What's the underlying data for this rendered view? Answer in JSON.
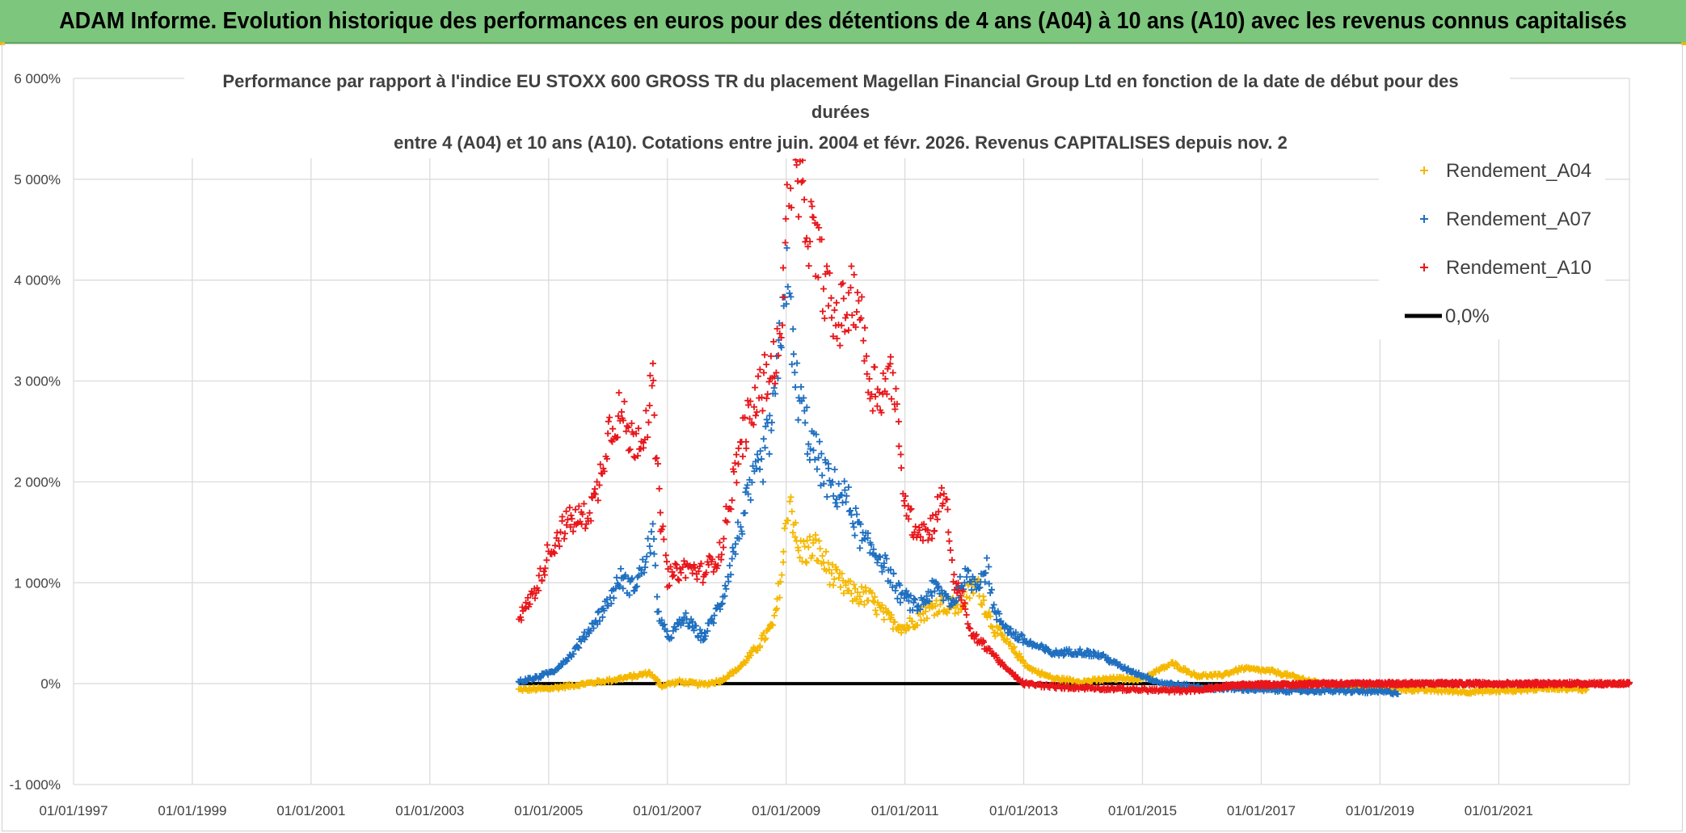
{
  "banner": {
    "title": "ADAM Informe. Evolution historique des performances en euros pour des détentions de 4 ans (A04) à 10 ans (A10) avec les revenus connus capitalisés"
  },
  "chart_data": {
    "type": "scatter",
    "title_lines": [
      "Performance par rapport à l'indice EU STOXX 600 GROSS TR  du placement Magellan Financial Group Ltd en fonction de la date de début pour des",
      "durées",
      "entre 4 (A04) et 10 ans (A10). Cotations entre juin. 2004 et févr. 2026. Revenus CAPITALISES depuis nov. 2"
    ],
    "xlabel": "",
    "ylabel": "",
    "xlim": [
      1997.0,
      2023.2
    ],
    "ylim": [
      -1000,
      6000
    ],
    "x_ticks": [
      1997,
      1999,
      2001,
      2003,
      2005,
      2007,
      2009,
      2011,
      2013,
      2015,
      2017,
      2019,
      2021
    ],
    "x_tick_labels": [
      "01/01/1997",
      "01/01/1999",
      "01/01/2001",
      "01/01/2003",
      "01/01/2005",
      "01/01/2007",
      "01/01/2009",
      "01/01/2011",
      "01/01/2013",
      "01/01/2015",
      "01/01/2017",
      "01/01/2019",
      "01/01/2021"
    ],
    "y_ticks": [
      -1000,
      0,
      1000,
      2000,
      3000,
      4000,
      5000,
      6000
    ],
    "y_tick_labels": [
      "-1 000%",
      "0%",
      "1 000%",
      "2 000%",
      "3 000%",
      "4 000%",
      "5 000%",
      "6 000%"
    ],
    "grid": true,
    "legend_position": "top-right",
    "series": [
      {
        "name": "Rendement_A04",
        "color": "#f5b800",
        "marker": "+",
        "points": [
          [
            2004.5,
            -60
          ],
          [
            2005.0,
            -50
          ],
          [
            2005.5,
            -10
          ],
          [
            2006.0,
            30
          ],
          [
            2006.5,
            80
          ],
          [
            2006.7,
            110
          ],
          [
            2006.9,
            -20
          ],
          [
            2007.2,
            20
          ],
          [
            2007.6,
            -10
          ],
          [
            2007.9,
            30
          ],
          [
            2008.2,
            150
          ],
          [
            2008.5,
            350
          ],
          [
            2008.8,
            600
          ],
          [
            2008.95,
            1200
          ],
          [
            2009.05,
            1900
          ],
          [
            2009.2,
            1300
          ],
          [
            2009.5,
            1350
          ],
          [
            2009.8,
            1050
          ],
          [
            2010.1,
            900
          ],
          [
            2010.4,
            850
          ],
          [
            2010.7,
            650
          ],
          [
            2011.0,
            550
          ],
          [
            2011.3,
            700
          ],
          [
            2011.6,
            800
          ],
          [
            2011.9,
            750
          ],
          [
            2012.2,
            1000
          ],
          [
            2012.5,
            550
          ],
          [
            2012.8,
            350
          ],
          [
            2013.1,
            150
          ],
          [
            2013.5,
            50
          ],
          [
            2014.0,
            20
          ],
          [
            2014.5,
            50
          ],
          [
            2015.0,
            50
          ],
          [
            2015.5,
            200
          ],
          [
            2015.9,
            80
          ],
          [
            2016.3,
            80
          ],
          [
            2016.7,
            150
          ],
          [
            2017.2,
            120
          ],
          [
            2017.6,
            60
          ],
          [
            2018.0,
            0
          ],
          [
            2018.5,
            -30
          ],
          [
            2019.0,
            -40
          ],
          [
            2019.5,
            -60
          ],
          [
            2020.0,
            -70
          ],
          [
            2020.5,
            -80
          ],
          [
            2021.0,
            -70
          ],
          [
            2021.5,
            -60
          ],
          [
            2021.8,
            -40
          ],
          [
            2022.2,
            -50
          ],
          [
            2022.5,
            -60
          ]
        ]
      },
      {
        "name": "Rendement_A07",
        "color": "#1f6fc0",
        "marker": "+",
        "points": [
          [
            2004.5,
            20
          ],
          [
            2004.8,
            60
          ],
          [
            2005.1,
            130
          ],
          [
            2005.4,
            300
          ],
          [
            2005.7,
            550
          ],
          [
            2006.0,
            800
          ],
          [
            2006.2,
            1050
          ],
          [
            2006.4,
            950
          ],
          [
            2006.6,
            1150
          ],
          [
            2006.75,
            1500
          ],
          [
            2006.85,
            700
          ],
          [
            2007.0,
            450
          ],
          [
            2007.3,
            650
          ],
          [
            2007.6,
            450
          ],
          [
            2007.9,
            800
          ],
          [
            2008.2,
            1500
          ],
          [
            2008.4,
            1900
          ],
          [
            2008.6,
            2200
          ],
          [
            2008.8,
            2700
          ],
          [
            2009.0,
            4100
          ],
          [
            2009.15,
            3000
          ],
          [
            2009.4,
            2400
          ],
          [
            2009.7,
            2000
          ],
          [
            2010.0,
            1850
          ],
          [
            2010.3,
            1400
          ],
          [
            2010.6,
            1250
          ],
          [
            2010.9,
            900
          ],
          [
            2011.2,
            750
          ],
          [
            2011.5,
            950
          ],
          [
            2011.8,
            800
          ],
          [
            2012.0,
            1050
          ],
          [
            2012.2,
            1000
          ],
          [
            2012.4,
            1150
          ],
          [
            2012.5,
            700
          ],
          [
            2012.8,
            500
          ],
          [
            2013.1,
            400
          ],
          [
            2013.5,
            300
          ],
          [
            2013.9,
            320
          ],
          [
            2014.3,
            280
          ],
          [
            2014.7,
            150
          ],
          [
            2015.0,
            80
          ],
          [
            2015.3,
            10
          ],
          [
            2015.7,
            -20
          ],
          [
            2016.0,
            -40
          ],
          [
            2016.5,
            -50
          ],
          [
            2017.0,
            -60
          ],
          [
            2017.5,
            -70
          ],
          [
            2018.0,
            -70
          ],
          [
            2018.5,
            -75
          ],
          [
            2019.0,
            -80
          ],
          [
            2019.3,
            -90
          ]
        ]
      },
      {
        "name": "Rendement_A10",
        "color": "#e8161a",
        "marker": "+",
        "points": [
          [
            2004.5,
            650
          ],
          [
            2004.8,
            950
          ],
          [
            2005.0,
            1300
          ],
          [
            2005.3,
            1600
          ],
          [
            2005.6,
            1650
          ],
          [
            2005.8,
            1850
          ],
          [
            2006.0,
            2500
          ],
          [
            2006.2,
            2700
          ],
          [
            2006.4,
            2400
          ],
          [
            2006.6,
            2500
          ],
          [
            2006.75,
            2950
          ],
          [
            2006.85,
            1900
          ],
          [
            2007.0,
            1050
          ],
          [
            2007.3,
            1150
          ],
          [
            2007.6,
            1100
          ],
          [
            2007.9,
            1300
          ],
          [
            2008.1,
            2000
          ],
          [
            2008.3,
            2500
          ],
          [
            2008.5,
            2800
          ],
          [
            2008.7,
            3100
          ],
          [
            2008.9,
            3300
          ],
          [
            2009.05,
            5200
          ],
          [
            2009.3,
            4700
          ],
          [
            2009.55,
            4200
          ],
          [
            2009.8,
            3600
          ],
          [
            2010.0,
            3700
          ],
          [
            2010.2,
            3900
          ],
          [
            2010.4,
            3000
          ],
          [
            2010.6,
            2900
          ],
          [
            2010.8,
            3100
          ],
          [
            2010.95,
            2000
          ],
          [
            2011.1,
            1600
          ],
          [
            2011.4,
            1500
          ],
          [
            2011.6,
            1800
          ],
          [
            2011.7,
            1900
          ],
          [
            2011.8,
            1050
          ],
          [
            2011.95,
            900
          ],
          [
            2012.1,
            500
          ],
          [
            2012.4,
            350
          ],
          [
            2012.7,
            150
          ],
          [
            2013.0,
            0
          ],
          [
            2013.5,
            -30
          ],
          [
            2014.0,
            -40
          ],
          [
            2014.5,
            -50
          ],
          [
            2015.0,
            -60
          ],
          [
            2015.5,
            -70
          ],
          [
            2016.0,
            -60
          ],
          [
            2016.5,
            -20
          ],
          [
            2017.0,
            -10
          ],
          [
            2017.5,
            -10
          ],
          [
            2018.0,
            0
          ],
          [
            2018.5,
            0
          ],
          [
            2019.0,
            0
          ],
          [
            2019.5,
            0
          ],
          [
            2020.0,
            0
          ],
          [
            2020.5,
            0
          ],
          [
            2021.0,
            0
          ],
          [
            2021.5,
            0
          ],
          [
            2022.0,
            0
          ],
          [
            2022.5,
            0
          ],
          [
            2023.0,
            0
          ],
          [
            2023.2,
            0
          ]
        ]
      },
      {
        "name": "0,0%",
        "color": "#000000",
        "line_value": 0,
        "x_range": [
          2004.5,
          2018.0
        ]
      }
    ]
  }
}
